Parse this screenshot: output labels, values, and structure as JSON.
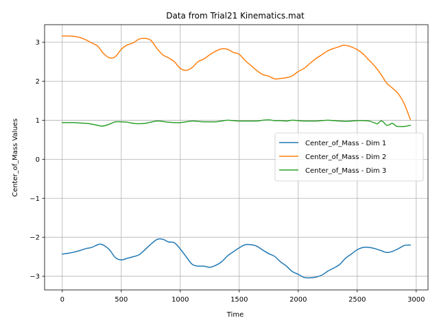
{
  "chart_data": {
    "type": "line",
    "title": "Data from Trial21 Kinematics.mat",
    "xlabel": "Time",
    "ylabel": "Center_of_Mass Values",
    "xlim": [
      -150,
      3100
    ],
    "ylim": [
      -3.35,
      3.45
    ],
    "xticks": [
      0,
      500,
      1000,
      1500,
      2000,
      2500,
      3000
    ],
    "yticks": [
      -3,
      -2,
      -1,
      0,
      1,
      2,
      3
    ],
    "xtick_labels": [
      "0",
      "500",
      "1000",
      "1500",
      "2000",
      "2500",
      "3000"
    ],
    "ytick_labels": [
      "−3",
      "−2",
      "−1",
      "0",
      "1",
      "2",
      "3"
    ],
    "grid": true,
    "legend_position": "center-right",
    "series": [
      {
        "name": "Center_of_Mass - Dim 1",
        "color": "#1f77b4",
        "x": [
          0,
          50,
          100,
          150,
          200,
          250,
          300,
          330,
          360,
          400,
          450,
          500,
          550,
          600,
          650,
          700,
          750,
          800,
          830,
          860,
          900,
          950,
          1000,
          1050,
          1100,
          1150,
          1200,
          1250,
          1300,
          1350,
          1400,
          1450,
          1500,
          1550,
          1600,
          1650,
          1700,
          1750,
          1800,
          1850,
          1900,
          1950,
          2000,
          2050,
          2100,
          2150,
          2200,
          2250,
          2300,
          2350,
          2400,
          2450,
          2500,
          2550,
          2600,
          2650,
          2700,
          2750,
          2800,
          2850,
          2900,
          2950
        ],
        "y": [
          -2.43,
          -2.41,
          -2.38,
          -2.34,
          -2.29,
          -2.26,
          -2.19,
          -2.18,
          -2.22,
          -2.32,
          -2.52,
          -2.58,
          -2.54,
          -2.5,
          -2.45,
          -2.32,
          -2.18,
          -2.06,
          -2.04,
          -2.06,
          -2.12,
          -2.14,
          -2.3,
          -2.5,
          -2.69,
          -2.74,
          -2.74,
          -2.77,
          -2.72,
          -2.63,
          -2.48,
          -2.37,
          -2.27,
          -2.19,
          -2.19,
          -2.23,
          -2.33,
          -2.42,
          -2.49,
          -2.63,
          -2.74,
          -2.88,
          -2.95,
          -3.03,
          -3.04,
          -3.02,
          -2.97,
          -2.87,
          -2.79,
          -2.7,
          -2.54,
          -2.43,
          -2.32,
          -2.26,
          -2.26,
          -2.29,
          -2.34,
          -2.39,
          -2.36,
          -2.29,
          -2.21,
          -2.2
        ]
      },
      {
        "name": "Center_of_Mass - Dim 2",
        "color": "#ff7f0e",
        "x": [
          0,
          50,
          100,
          150,
          200,
          250,
          300,
          350,
          400,
          450,
          500,
          550,
          600,
          650,
          700,
          750,
          800,
          850,
          900,
          950,
          1000,
          1050,
          1100,
          1150,
          1200,
          1250,
          1300,
          1350,
          1400,
          1450,
          1500,
          1550,
          1600,
          1650,
          1700,
          1750,
          1800,
          1850,
          1900,
          1950,
          2000,
          2050,
          2100,
          2150,
          2200,
          2250,
          2300,
          2350,
          2380,
          2420,
          2450,
          2500,
          2550,
          2600,
          2650,
          2700,
          2750,
          2800,
          2850,
          2900,
          2950
        ],
        "y": [
          3.16,
          3.16,
          3.15,
          3.12,
          3.06,
          2.98,
          2.9,
          2.71,
          2.6,
          2.63,
          2.82,
          2.93,
          2.98,
          3.08,
          3.1,
          3.05,
          2.85,
          2.68,
          2.6,
          2.5,
          2.33,
          2.28,
          2.35,
          2.5,
          2.57,
          2.68,
          2.77,
          2.83,
          2.82,
          2.74,
          2.69,
          2.53,
          2.4,
          2.27,
          2.17,
          2.13,
          2.06,
          2.07,
          2.09,
          2.14,
          2.25,
          2.33,
          2.46,
          2.58,
          2.68,
          2.78,
          2.84,
          2.89,
          2.92,
          2.91,
          2.88,
          2.81,
          2.7,
          2.54,
          2.38,
          2.18,
          1.95,
          1.82,
          1.67,
          1.41,
          1.02
        ]
      },
      {
        "name": "Center_of_Mass - Dim 3",
        "color": "#2ca02c",
        "x": [
          0,
          50,
          100,
          150,
          200,
          250,
          300,
          330,
          360,
          400,
          450,
          500,
          550,
          600,
          650,
          700,
          750,
          800,
          850,
          900,
          950,
          1000,
          1050,
          1100,
          1150,
          1200,
          1250,
          1300,
          1350,
          1400,
          1450,
          1500,
          1550,
          1600,
          1650,
          1700,
          1750,
          1800,
          1850,
          1900,
          1950,
          2000,
          2050,
          2100,
          2150,
          2200,
          2250,
          2300,
          2350,
          2400,
          2450,
          2500,
          2550,
          2600,
          2650,
          2670,
          2700,
          2720,
          2750,
          2780,
          2800,
          2830,
          2850,
          2900,
          2950
        ],
        "y": [
          0.94,
          0.94,
          0.94,
          0.93,
          0.92,
          0.9,
          0.87,
          0.85,
          0.86,
          0.9,
          0.96,
          0.96,
          0.95,
          0.92,
          0.91,
          0.92,
          0.95,
          0.98,
          0.97,
          0.95,
          0.94,
          0.94,
          0.96,
          0.98,
          0.97,
          0.96,
          0.96,
          0.96,
          0.98,
          1.0,
          0.99,
          0.98,
          0.98,
          0.98,
          0.98,
          1.0,
          1.01,
          0.99,
          0.99,
          0.98,
          1.0,
          0.99,
          0.98,
          0.98,
          0.98,
          0.99,
          1.0,
          0.99,
          0.98,
          0.97,
          0.98,
          0.99,
          0.99,
          0.98,
          0.93,
          0.91,
          0.98,
          0.96,
          0.87,
          0.9,
          0.92,
          0.85,
          0.84,
          0.84,
          0.87
        ]
      }
    ]
  }
}
